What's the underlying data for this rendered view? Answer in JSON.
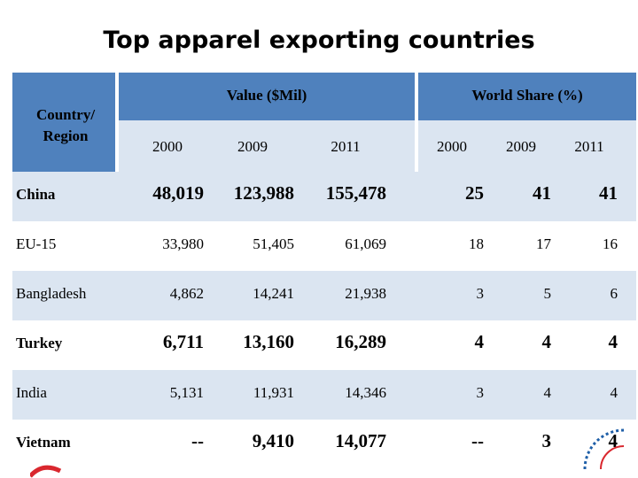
{
  "title": "Top apparel exporting countries",
  "header": {
    "country_label": "Country/ Region",
    "value_group": "Value ($Mil)",
    "share_group": "World Share (%)",
    "value_years": [
      "2000",
      "2009",
      "2011"
    ],
    "share_years": [
      "2000",
      "2009",
      "2011"
    ]
  },
  "rows": [
    {
      "country": "China",
      "values": [
        "48,019",
        "123,988",
        "155,478"
      ],
      "shares": [
        "25",
        "41",
        "41"
      ],
      "emphasis": true
    },
    {
      "country": "EU-15",
      "values": [
        "33,980",
        "51,405",
        "61,069"
      ],
      "shares": [
        "18",
        "17",
        "16"
      ],
      "emphasis": false
    },
    {
      "country": "Bangladesh",
      "values": [
        "4,862",
        "14,241",
        "21,938"
      ],
      "shares": [
        "3",
        "5",
        "6"
      ],
      "emphasis": false
    },
    {
      "country": "Turkey",
      "values": [
        "6,711",
        "13,160",
        "16,289"
      ],
      "shares": [
        "4",
        "4",
        "4"
      ],
      "emphasis": true
    },
    {
      "country": "India",
      "values": [
        "5,131",
        "11,931",
        "14,346"
      ],
      "shares": [
        "3",
        "4",
        "4"
      ],
      "emphasis": false
    },
    {
      "country": "Vietnam",
      "values": [
        "--",
        "9,410",
        "14,077"
      ],
      "shares": [
        "--",
        "3",
        "4"
      ],
      "emphasis": true
    }
  ],
  "colors": {
    "header_blue": "#4f81bd",
    "row_tint": "#dbe5f1",
    "emphasis_text": "#000000",
    "logo_red": "#d9272e",
    "logo_blue": "#1f5fa8"
  }
}
